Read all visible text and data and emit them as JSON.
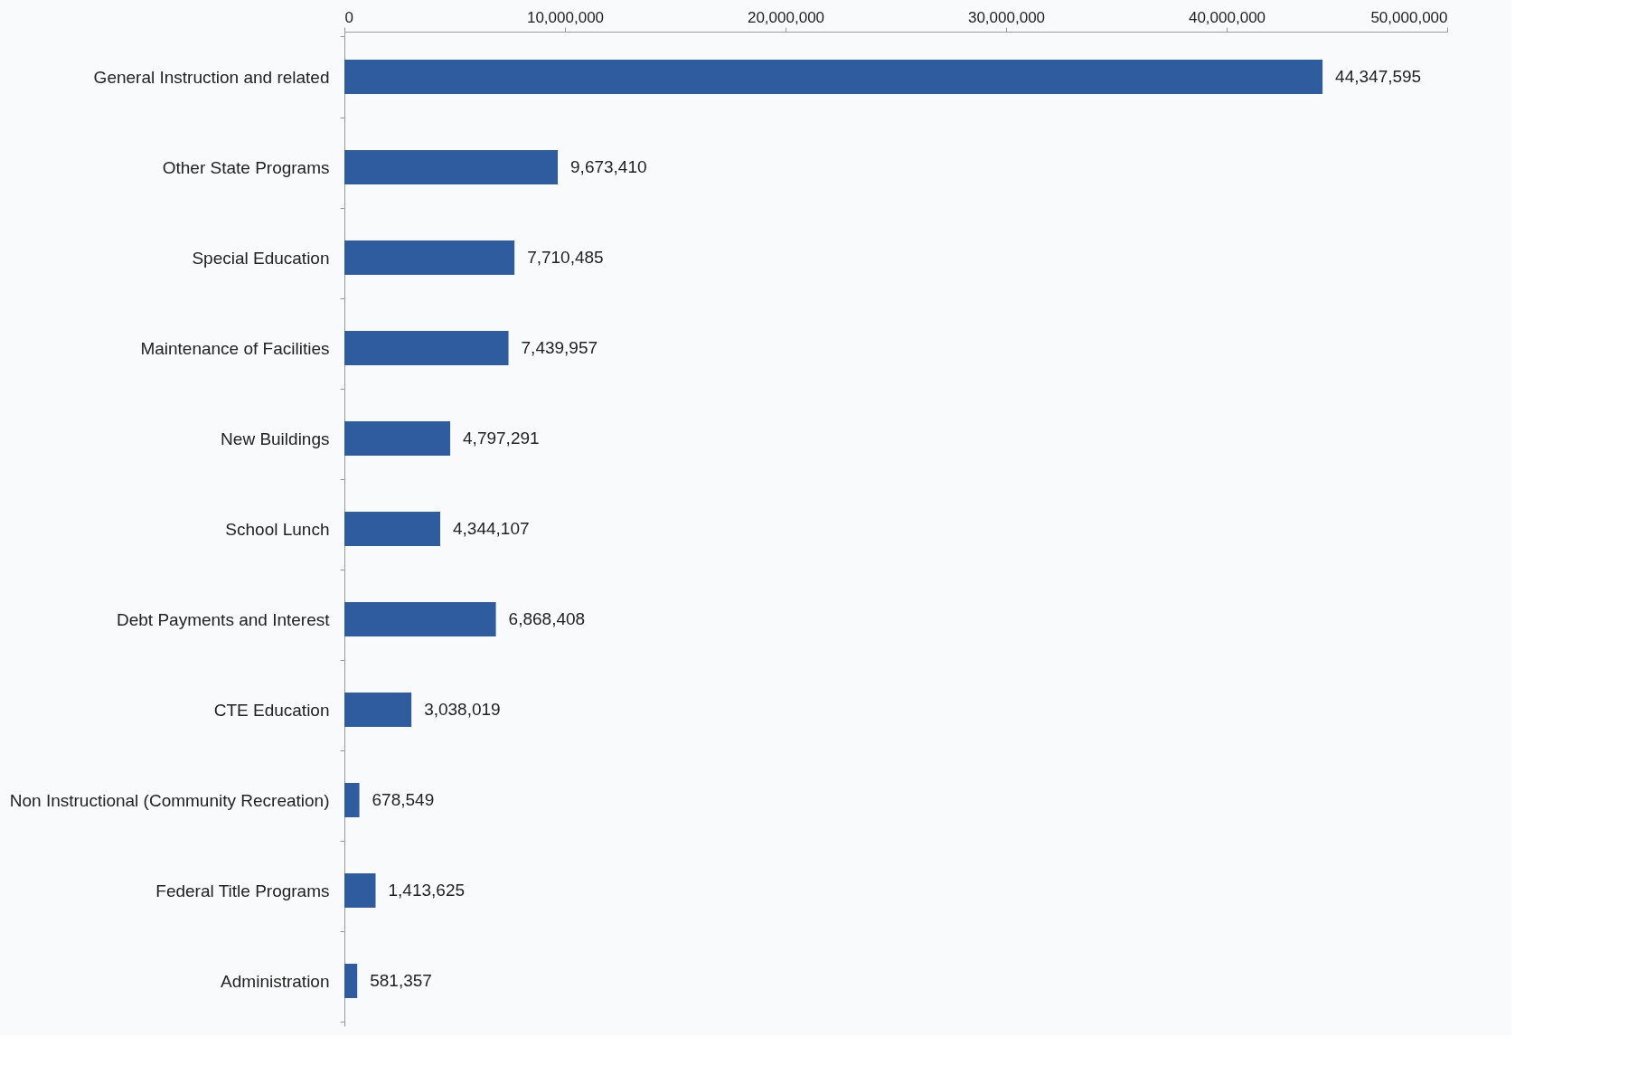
{
  "chart_data": {
    "type": "bar",
    "orientation": "horizontal",
    "categories": [
      "General Instruction and related",
      "Other State Programs",
      "Special Education",
      "Maintenance of Facilities",
      "New Buildings",
      "School Lunch",
      "Debt Payments and Interest",
      "CTE Education",
      "Non Instructional (Community Recreation)",
      "Federal Title Programs",
      "Administration"
    ],
    "values": [
      44347595,
      9673410,
      7710485,
      7439957,
      4797291,
      4344107,
      6868408,
      3038019,
      678549,
      1413625,
      581357
    ],
    "value_labels": [
      "44,347,595",
      "9,673,410",
      "7,710,485",
      "7,439,957",
      "4,797,291",
      "4,344,107",
      "6,868,408",
      "3,038,019",
      "678,549",
      "1,413,625",
      "581,357"
    ],
    "color": "#2e5c9e",
    "xlim": [
      0,
      50000000
    ],
    "xticks": [
      0,
      {
        "value": 10000000,
        "label": "10,000,000"
      },
      {
        "value": 20000000,
        "label": "20,000,000"
      },
      {
        "value": 30000000,
        "label": "30,000,000"
      },
      {
        "value": 40000000,
        "label": "40,000,000"
      },
      {
        "value": 50000000,
        "label": "50,000,000"
      }
    ],
    "grid": false
  }
}
